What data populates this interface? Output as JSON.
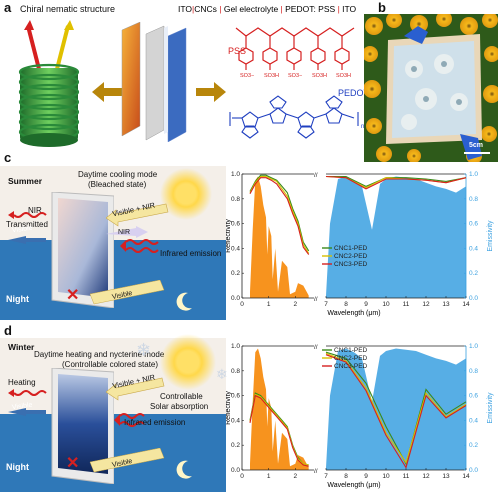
{
  "figure": {
    "panel_a": {
      "label": "a",
      "title_left": "Chiral nematic structure",
      "stack_parts": [
        "ITO",
        "CNCs",
        "Gel electrolyte",
        "PEDOT: PSS",
        "ITO"
      ],
      "pss_label": "PSS",
      "pedot_label": "PEDOT",
      "so3": "SO3H",
      "so3minus": "SO3−",
      "subscript_n": "n"
    },
    "panel_b": {
      "label": "b",
      "scale": "5cm"
    },
    "panel_c": {
      "label": "c",
      "season": "Summer",
      "mode": "Daytime cooling mode",
      "state": "(Bleached state)",
      "nir": "NIR",
      "transmitted": "Transmitted",
      "visible": "Visible",
      "visible_nir": "Visible + NIR",
      "nir_arrow": "NIR",
      "infrared": "Infrared emission",
      "night": "Night",
      "visible_night": "Visible"
    },
    "panel_d": {
      "label": "d",
      "season": "Winter",
      "mode": "Daytime heating and nycterine mode",
      "state": "(Controllable colored state)",
      "heating": "Heating",
      "visible": "Visible",
      "visible_nir": "Visible + NIR",
      "controllable": "Controllable",
      "solar": "Solar absorption",
      "infrared": "Infrared emission",
      "night": "Night",
      "visible_night": "Visible"
    },
    "colors": {
      "blue": "#1f6fb5",
      "orange": "#f7931e",
      "lightblue": "#3aa0e0",
      "red": "#d62020",
      "green": "#3a8a1a",
      "yellow": "#d8c000"
    }
  },
  "chart_data": [
    {
      "type": "line",
      "panel": "c",
      "xlabel": "Wavelength (μm)",
      "ylabel_left": "Reflectivity",
      "ylabel_right": "Emissivity",
      "xticks": [
        "0",
        "1",
        "2",
        "7",
        "8",
        "9",
        "10",
        "11",
        "12",
        "13",
        "14"
      ],
      "yticks": [
        "0.0",
        "0.2",
        "0.4",
        "0.6",
        "0.8",
        "1.0"
      ],
      "ylim": [
        0,
        1.0
      ],
      "legend": "top-right",
      "series": [
        {
          "name": "CNC1-PED",
          "color": "#3a8a1a",
          "x": [
            0.3,
            0.5,
            0.7,
            0.9,
            1.1,
            1.3,
            1.5,
            1.7,
            1.9,
            2.1,
            2.3,
            2.5,
            7,
            8,
            9,
            10,
            11,
            12,
            13,
            14
          ],
          "values": [
            0.86,
            0.94,
            0.99,
            0.99,
            0.97,
            0.95,
            0.9,
            0.85,
            0.72,
            0.62,
            0.45,
            0.38,
            0.98,
            0.98,
            0.9,
            0.97,
            0.97,
            0.96,
            0.94,
            0.97
          ]
        },
        {
          "name": "CNC2-PED",
          "color": "#d8c000",
          "x": [
            0.3,
            0.5,
            0.7,
            0.9,
            1.1,
            1.3,
            1.5,
            1.7,
            1.9,
            2.1,
            2.3,
            2.5,
            7,
            8,
            9,
            10,
            11,
            12,
            13,
            14
          ],
          "values": [
            0.85,
            0.93,
            0.98,
            0.98,
            0.96,
            0.94,
            0.88,
            0.82,
            0.7,
            0.6,
            0.43,
            0.36,
            0.98,
            0.97,
            0.89,
            0.97,
            0.96,
            0.95,
            0.93,
            0.97
          ]
        },
        {
          "name": "CNC3-PED",
          "color": "#d62020",
          "x": [
            0.3,
            0.5,
            0.7,
            0.9,
            1.1,
            1.3,
            1.5,
            1.7,
            1.9,
            2.1,
            2.3,
            2.5,
            7,
            8,
            9,
            10,
            11,
            12,
            13,
            14
          ],
          "values": [
            0.84,
            0.92,
            0.97,
            0.97,
            0.95,
            0.92,
            0.86,
            0.8,
            0.68,
            0.58,
            0.41,
            0.35,
            0.98,
            0.97,
            0.88,
            0.96,
            0.96,
            0.95,
            0.93,
            0.97
          ]
        }
      ]
    },
    {
      "type": "line",
      "panel": "d",
      "xlabel": "Wavelength (μm)",
      "ylabel_left": "Reflectivity",
      "ylabel_right": "Emissivity",
      "xticks": [
        "0",
        "1",
        "2",
        "7",
        "8",
        "9",
        "10",
        "11",
        "12",
        "13",
        "14"
      ],
      "yticks": [
        "0.0",
        "0.2",
        "0.4",
        "0.6",
        "0.8",
        "1.0"
      ],
      "ylim": [
        0,
        1.0
      ],
      "legend": "top-right",
      "series": [
        {
          "name": "CNC1-PED",
          "color": "#3a8a1a",
          "x": [
            0.3,
            0.5,
            0.7,
            0.9,
            1.1,
            1.3,
            1.5,
            1.7,
            1.9,
            2.1,
            2.3,
            2.5,
            7,
            8,
            9,
            10,
            11,
            12,
            13,
            14
          ],
          "values": [
            0.4,
            0.62,
            0.6,
            0.55,
            0.5,
            0.45,
            0.4,
            0.35,
            0.2,
            0.1,
            0.05,
            0.04,
            0.95,
            0.9,
            0.7,
            0.35,
            0.05,
            0.65,
            0.45,
            0.55
          ]
        },
        {
          "name": "CNC2-PED",
          "color": "#d8c000",
          "x": [
            0.3,
            0.5,
            0.7,
            0.9,
            1.1,
            1.3,
            1.5,
            1.7,
            1.9,
            2.1,
            2.3,
            2.5,
            7,
            8,
            9,
            10,
            11,
            12,
            13,
            14
          ],
          "values": [
            0.39,
            0.61,
            0.59,
            0.54,
            0.49,
            0.44,
            0.39,
            0.34,
            0.19,
            0.09,
            0.05,
            0.04,
            0.94,
            0.88,
            0.66,
            0.3,
            0.06,
            0.62,
            0.43,
            0.53
          ]
        },
        {
          "name": "CNC3-PED",
          "color": "#d62020",
          "x": [
            0.3,
            0.5,
            0.7,
            0.9,
            1.1,
            1.3,
            1.5,
            1.7,
            1.9,
            2.1,
            2.3,
            2.5,
            7,
            8,
            9,
            10,
            11,
            12,
            13,
            14
          ],
          "values": [
            0.38,
            0.6,
            0.58,
            0.53,
            0.48,
            0.43,
            0.38,
            0.33,
            0.18,
            0.08,
            0.04,
            0.03,
            0.93,
            0.87,
            0.64,
            0.28,
            0.02,
            0.6,
            0.42,
            0.52
          ]
        }
      ]
    }
  ]
}
